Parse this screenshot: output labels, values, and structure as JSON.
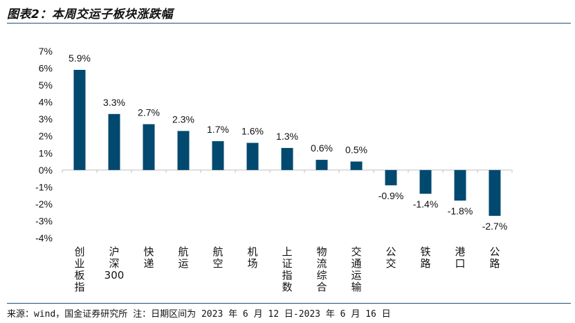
{
  "header": {
    "title": "图表2：本周交运子板块涨跌幅"
  },
  "footer": {
    "source": "来源：wind，国金证券研究所   注：日期区间为 2023 年 6 月 12 日-2023 年 6 月 16 日"
  },
  "colors": {
    "bar": "#02496f",
    "rule": "#1f4e79",
    "axis": "#bfbfbf"
  },
  "chart_data": {
    "type": "bar",
    "categories": [
      "创业板指",
      "沪深300",
      "快递",
      "航运",
      "航空",
      "机场",
      "上证指数",
      "物流综合",
      "交通运输",
      "公交",
      "铁路",
      "港口",
      "公路"
    ],
    "values": [
      5.9,
      3.3,
      2.7,
      2.3,
      1.7,
      1.6,
      1.3,
      0.6,
      0.5,
      -0.9,
      -1.4,
      -1.8,
      -2.7
    ],
    "data_labels": [
      "5.9%",
      "3.3%",
      "2.7%",
      "2.3%",
      "1.7%",
      "1.6%",
      "1.3%",
      "0.6%",
      "0.5%",
      "-0.9%",
      "-1.4%",
      "-1.8%",
      "-2.7%"
    ],
    "ylim": [
      -4,
      7
    ],
    "yticks": [
      7,
      6,
      5,
      4,
      3,
      2,
      1,
      0,
      -1,
      -2,
      -3,
      -4
    ],
    "ytick_labels": [
      "7%",
      "6%",
      "5%",
      "4%",
      "3%",
      "2%",
      "1%",
      "0%",
      "-1%",
      "-2%",
      "-3%",
      "-4%"
    ],
    "grid": false,
    "legend": "none"
  }
}
